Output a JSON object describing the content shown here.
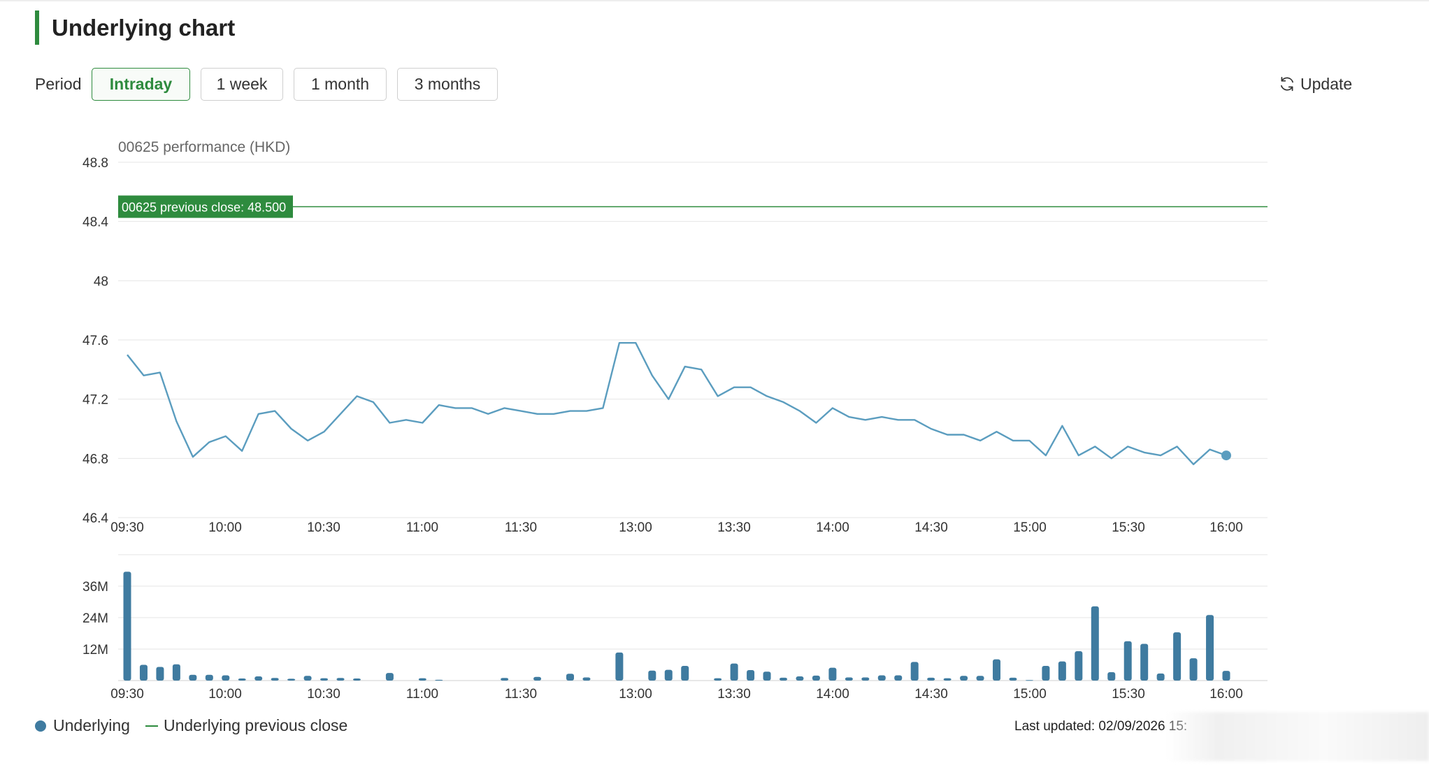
{
  "header": {
    "title": "Underlying chart"
  },
  "period": {
    "label": "Period",
    "options": [
      "Intraday",
      "1 week",
      "1 month",
      "3 months"
    ],
    "selected": "Intraday"
  },
  "update": {
    "label": "Update",
    "icon": "refresh-icon"
  },
  "colors": {
    "accent": "#2e8b3e",
    "series": "#5b9dbf",
    "bars": "#3f7ba0",
    "grid": "#e6e6e6"
  },
  "chart_data": [
    {
      "type": "line",
      "title": "00625 performance (HKD)",
      "ylim": [
        46.4,
        48.8
      ],
      "y_ticks": [
        "48.8",
        "48.4",
        "48",
        "47.6",
        "47.2",
        "46.8",
        "46.4"
      ],
      "x_ticks": [
        "09:30",
        "10:00",
        "10:30",
        "11:00",
        "11:30",
        "13:00",
        "13:30",
        "14:00",
        "14:30",
        "15:00",
        "15:30",
        "16:00"
      ],
      "series": [
        {
          "values": [
            47.5,
            47.36,
            47.38,
            47.05,
            46.81,
            46.91,
            46.95,
            46.85,
            47.1,
            47.12,
            47.0,
            46.92,
            46.98,
            47.1,
            47.22,
            47.18,
            47.04,
            47.06,
            47.04,
            47.16,
            47.14,
            47.14,
            47.1,
            47.14,
            47.12,
            47.1,
            47.1,
            47.12,
            47.12,
            47.14,
            47.58,
            47.58,
            47.36,
            47.2,
            47.42,
            47.4,
            47.22,
            47.28,
            47.28,
            47.22,
            47.18,
            47.12,
            47.04,
            47.14,
            47.08,
            47.06,
            47.08,
            47.06,
            47.06,
            47.0,
            46.96,
            46.96,
            46.92,
            46.98,
            46.92,
            46.92,
            46.82,
            47.02,
            46.82,
            46.88,
            46.8,
            46.88,
            46.84,
            46.82,
            46.88,
            46.76,
            46.86,
            46.82
          ]
        }
      ],
      "reference_line": {
        "label": "00625 previous close: 48.500",
        "value": 48.5
      }
    },
    {
      "type": "bar",
      "y_ticks": [
        "36M",
        "24M",
        "12M"
      ],
      "ylim": [
        0,
        48
      ],
      "x_ticks": [
        "09:30",
        "10:00",
        "10:30",
        "11:00",
        "11:30",
        "13:00",
        "13:30",
        "14:00",
        "14:30",
        "15:00",
        "15:30",
        "16:00"
      ],
      "values": [
        41.5,
        6,
        5.2,
        6.2,
        2.2,
        2.2,
        2.0,
        0.8,
        1.6,
        1.0,
        0.7,
        1.8,
        0.9,
        1.0,
        0.8,
        0,
        2.9,
        0,
        0.9,
        0.3,
        0,
        0,
        0,
        1.0,
        0,
        1.4,
        0,
        2.6,
        1.2,
        0,
        10.7,
        0,
        3.8,
        4.1,
        5.6,
        0,
        0.9,
        6.5,
        4.0,
        3.4,
        1.1,
        1.6,
        1.9,
        4.9,
        1.2,
        1.2,
        2.0,
        2.0,
        7.1,
        1.1,
        0.9,
        1.8,
        1.8,
        8.1,
        1.1,
        0.2,
        5.6,
        7.3,
        11.2,
        28.3,
        3.2,
        15.0,
        14.0,
        2.7,
        18.4,
        8.5,
        25.0,
        3.7
      ]
    }
  ],
  "legend": {
    "items": [
      {
        "label": "Underlying",
        "color": "#3f7ba0"
      },
      {
        "label": "Underlying previous close",
        "color": "#2e8b3e"
      }
    ]
  },
  "footer": {
    "last_updated": "Last updated: 02/09/2026 15:"
  }
}
